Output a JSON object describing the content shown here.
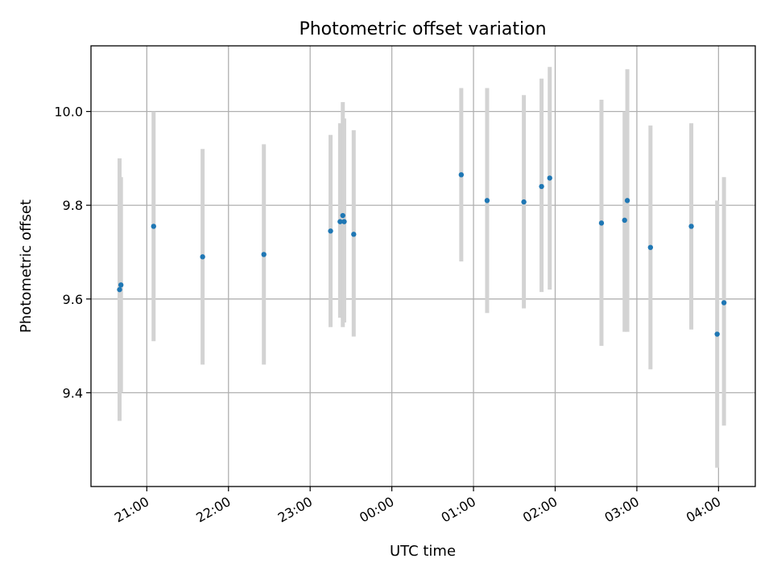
{
  "chart_data": {
    "type": "scatter",
    "title": "Photometric offset variation",
    "xlabel": "UTC time",
    "ylabel": "Photometric offset",
    "x_unit": "UTC time (hh:mm), times after 00:00 are the following day",
    "xlim": [
      "20:19",
      "04:27"
    ],
    "ylim": [
      9.2,
      10.14
    ],
    "x_ticks": [
      "21:00",
      "22:00",
      "23:00",
      "00:00",
      "01:00",
      "02:00",
      "03:00",
      "04:00"
    ],
    "y_ticks": [
      9.4,
      9.6,
      9.8,
      10.0
    ],
    "y_tick_labels": [
      "9.4",
      "9.6",
      "9.8",
      "10.0"
    ],
    "grid": true,
    "legend": "none",
    "colors": {
      "points": "#1f77b4",
      "errorbars": "#d3d3d3",
      "grid": "#b0b0b0"
    },
    "points": [
      {
        "x": "20:40",
        "y": 9.62,
        "err_low": 9.34,
        "err_high": 9.9
      },
      {
        "x": "20:41",
        "y": 9.63,
        "err_low": 9.4,
        "err_high": 9.86
      },
      {
        "x": "21:05",
        "y": 9.755,
        "err_low": 9.51,
        "err_high": 10.0
      },
      {
        "x": "21:41",
        "y": 9.69,
        "err_low": 9.46,
        "err_high": 9.92
      },
      {
        "x": "22:26",
        "y": 9.695,
        "err_low": 9.46,
        "err_high": 9.93
      },
      {
        "x": "23:15",
        "y": 9.745,
        "err_low": 9.54,
        "err_high": 9.95
      },
      {
        "x": "23:22",
        "y": 9.765,
        "err_low": 9.56,
        "err_high": 9.975
      },
      {
        "x": "23:24",
        "y": 9.778,
        "err_low": 9.54,
        "err_high": 10.02
      },
      {
        "x": "23:25",
        "y": 9.765,
        "err_low": 9.55,
        "err_high": 9.985
      },
      {
        "x": "23:32",
        "y": 9.738,
        "err_low": 9.52,
        "err_high": 9.96
      },
      {
        "x": "00:51",
        "y": 9.865,
        "err_low": 9.68,
        "err_high": 10.05
      },
      {
        "x": "01:10",
        "y": 9.81,
        "err_low": 9.57,
        "err_high": 10.05
      },
      {
        "x": "01:37",
        "y": 9.807,
        "err_low": 9.58,
        "err_high": 10.035
      },
      {
        "x": "01:50",
        "y": 9.84,
        "err_low": 9.615,
        "err_high": 10.07
      },
      {
        "x": "01:56",
        "y": 9.858,
        "err_low": 9.62,
        "err_high": 10.095
      },
      {
        "x": "02:34",
        "y": 9.762,
        "err_low": 9.5,
        "err_high": 10.025
      },
      {
        "x": "02:51",
        "y": 9.768,
        "err_low": 9.53,
        "err_high": 10.0
      },
      {
        "x": "02:53",
        "y": 9.81,
        "err_low": 9.53,
        "err_high": 10.09
      },
      {
        "x": "03:10",
        "y": 9.71,
        "err_low": 9.45,
        "err_high": 9.97
      },
      {
        "x": "03:40",
        "y": 9.755,
        "err_low": 9.535,
        "err_high": 9.975
      },
      {
        "x": "03:59",
        "y": 9.525,
        "err_low": 9.24,
        "err_high": 9.81
      },
      {
        "x": "04:04",
        "y": 9.592,
        "err_low": 9.33,
        "err_high": 9.86
      }
    ]
  }
}
